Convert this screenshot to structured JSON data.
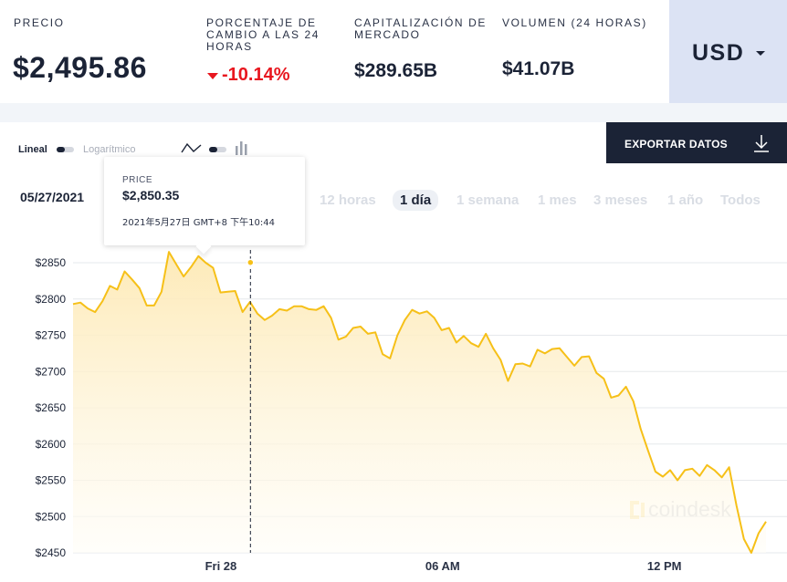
{
  "stats": {
    "price_label": "PRECIO",
    "price_value": "$2,495.86",
    "change_label_lines": [
      "PORCENTAJE DE",
      "CAMBIO A LAS 24",
      "HORAS"
    ],
    "change_value": "-10.14%",
    "cap_label_lines": [
      "CAPITALIZACIÓN DE",
      "MERCADO"
    ],
    "cap_value": "$289.65B",
    "volume_label": "VOLUMEN (24 HORAS)",
    "volume_value": "$41.07B",
    "currency": "USD"
  },
  "controls": {
    "linear_label": "Lineal",
    "log_label": "Logarítmico",
    "export_label": "EXPORTAR DATOS",
    "date": "05/27/2021",
    "ranges": [
      "12 horas",
      "1 día",
      "1 semana",
      "1 mes",
      "3 meses",
      "1 año",
      "Todos"
    ],
    "active_range": "1 día"
  },
  "tooltip": {
    "label": "PRICE",
    "value": "$2,850.35",
    "time": "2021年5月27日 GMT+8 下午10:44"
  },
  "watermark": "coindesk",
  "colors": {
    "line": "#f6c018",
    "negative": "#e8171f",
    "navy": "#1b2336",
    "currency_bg": "#dce3f4"
  },
  "chart_data": {
    "type": "area",
    "ylim": [
      2450,
      2860
    ],
    "ylabel_ticks": [
      "$2850",
      "$2800",
      "$2750",
      "$2700",
      "$2650",
      "$2600",
      "$2550",
      "$2500",
      "$2450"
    ],
    "y_tick_values": [
      2850,
      2800,
      2750,
      2700,
      2650,
      2600,
      2550,
      2500,
      2450
    ],
    "xlabel_ticks": [
      "Fri 28",
      "06 AM",
      "12 PM"
    ],
    "x_tick_hours": [
      2.0,
      8.0,
      14.0
    ],
    "x_start_hour": -2.0,
    "x_end_hour": 16.75,
    "grid": true,
    "hover_hour": 2.8,
    "series": [
      {
        "values": [
          2793,
          2795,
          2787,
          2782,
          2797,
          2818,
          2813,
          2838,
          2827,
          2815,
          2791,
          2791,
          2810,
          2865,
          2848,
          2831,
          2844,
          2859,
          2850,
          2843,
          2809,
          2810,
          2811,
          2782,
          2796,
          2780,
          2771,
          2777,
          2786,
          2784,
          2790,
          2790,
          2786,
          2785,
          2790,
          2774,
          2744,
          2748,
          2760,
          2762,
          2752,
          2754,
          2724,
          2718,
          2750,
          2771,
          2785,
          2780,
          2783,
          2774,
          2757,
          2760,
          2740,
          2749,
          2739,
          2734,
          2752,
          2732,
          2716,
          2687,
          2710,
          2711,
          2707,
          2730,
          2725,
          2731,
          2732,
          2720,
          2708,
          2720,
          2721,
          2698,
          2690,
          2664,
          2667,
          2679,
          2659,
          2621,
          2591,
          2562,
          2555,
          2564,
          2550,
          2564,
          2566,
          2556,
          2571,
          2564,
          2554,
          2568,
          2515,
          2469,
          2450,
          2477,
          2493
        ]
      }
    ]
  }
}
